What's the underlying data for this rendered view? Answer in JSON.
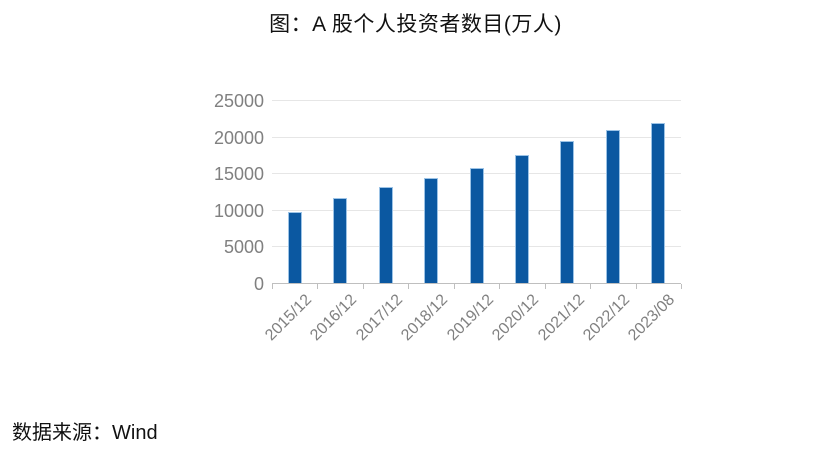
{
  "title": "图：A 股个人投资者数目(万人)",
  "source": "数据来源：Wind",
  "chart_data": {
    "type": "bar",
    "title": "图：A 股个人投资者数目(万人)",
    "categories": [
      "2015/12",
      "2016/12",
      "2017/12",
      "2018/12",
      "2019/12",
      "2020/12",
      "2021/12",
      "2022/12",
      "2023/08"
    ],
    "values": [
      9880,
      11700,
      13290,
      14470,
      15820,
      17680,
      19490,
      21070,
      21950
    ],
    "xlabel": "",
    "ylabel": "",
    "ylim": [
      0,
      25000
    ],
    "yticks": [
      0,
      5000,
      10000,
      15000,
      20000,
      25000
    ],
    "grid": true,
    "legend_position": "none",
    "colors": {
      "bar_fill": "#0b58a1",
      "bar_border": "#9cc3e6",
      "gridline": "#e6e6e6",
      "axis_line": "#bfbfbf",
      "tick_label": "#808080",
      "title_text": "#111111",
      "source_text": "#111111"
    }
  }
}
